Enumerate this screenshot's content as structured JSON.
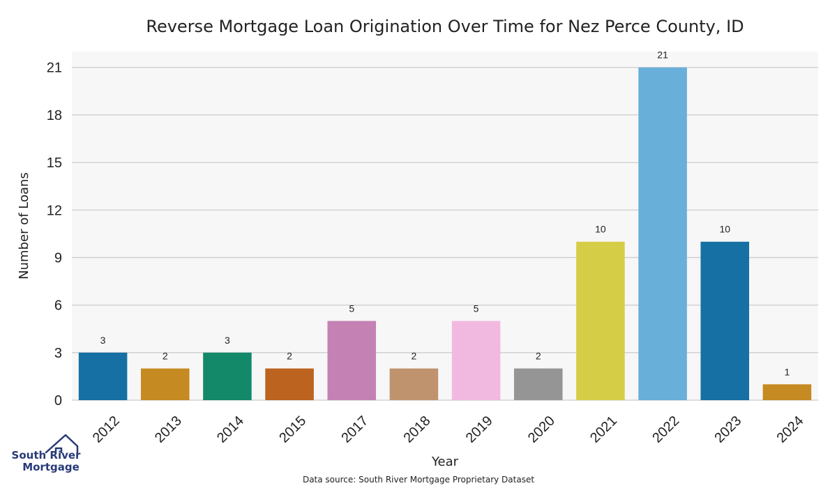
{
  "chart_data": {
    "type": "bar",
    "title": "Reverse Mortgage Loan Origination Over Time for Nez Perce County, ID",
    "xlabel": "Year",
    "ylabel": "Number of Loans",
    "categories": [
      "2012",
      "2013",
      "2014",
      "2015",
      "2017",
      "2018",
      "2019",
      "2020",
      "2021",
      "2022",
      "2023",
      "2024"
    ],
    "values": [
      3,
      2,
      3,
      2,
      5,
      2,
      5,
      2,
      10,
      21,
      10,
      1
    ],
    "colors": [
      "#1670a3",
      "#c58a21",
      "#14896a",
      "#bc631f",
      "#c482b4",
      "#bf936e",
      "#f2b9e0",
      "#959595",
      "#d6cd47",
      "#68afd9",
      "#1670a3",
      "#c58a21"
    ],
    "yticks": [
      0,
      3,
      6,
      9,
      12,
      15,
      18,
      21
    ],
    "ylim": [
      0,
      22
    ],
    "grid": true,
    "plot_background": "#f7f7f7",
    "grid_color": "#cccccc"
  },
  "source": "Data source: South River Mortgage Proprietary Dataset",
  "logo": {
    "line1": "South River",
    "line2": "Mortgage",
    "color": "#283a78"
  }
}
